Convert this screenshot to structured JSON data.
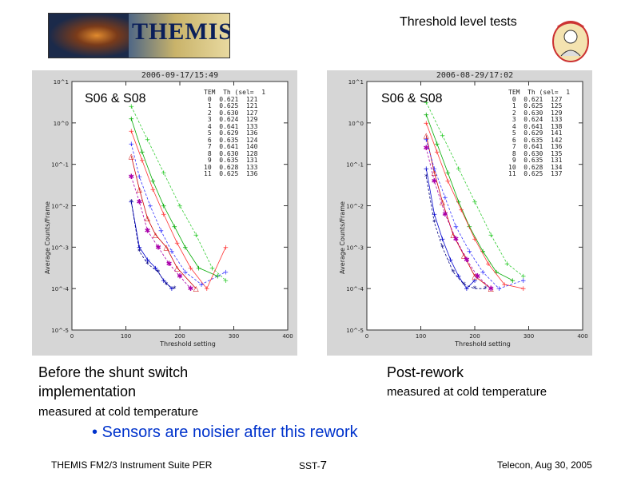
{
  "slide": {
    "title": "Threshold level tests",
    "logo_text": "THEMIS",
    "bullet": "• Sensors are noisier after this rework",
    "footer_left": "THEMIS FM2/3 Instrument Suite PER",
    "footer_mid_prefix": "SST-",
    "footer_page": "7",
    "footer_right": "Telecon, Aug 30, 2005"
  },
  "captions": {
    "left_line1": "Before the shunt switch",
    "left_line2": "implementation",
    "left_sub": "measured at cold temperature",
    "right_line1": "Post-rework",
    "right_sub": "measured at cold temperature"
  },
  "colors": {
    "bullet": "#0033cc",
    "series": [
      "#0000cc",
      "#000080",
      "#cc0000",
      "#aa00aa",
      "#00aa00",
      "#33cc33",
      "#ff3333",
      "#3333ff"
    ]
  },
  "chart_data": [
    {
      "type": "scatter",
      "timestamp": "2006-09-17/15:49",
      "label": "S06 & S08",
      "xlabel": "Threshold setting",
      "ylabel": "Average Counts/Frame",
      "xlim": [
        0,
        400
      ],
      "ylim_log10": [
        -5,
        1
      ],
      "xticks": [
        "0",
        "100",
        "200",
        "300",
        "400"
      ],
      "yticks": [
        "10^1",
        "10^0",
        "10^-1",
        "10^-2",
        "10^-3",
        "10^-4",
        "10^-5"
      ],
      "legend_header": [
        "TEM",
        "Th (sel=",
        "1"
      ],
      "legend_rows": [
        [
          "0",
          "0.621",
          "121"
        ],
        [
          "1",
          "0.625",
          "121"
        ],
        [
          "2",
          "0.630",
          "127"
        ],
        [
          "3",
          "0.624",
          "129"
        ],
        [
          "4",
          "0.641",
          "133"
        ],
        [
          "5",
          "0.629",
          "136"
        ],
        [
          "6",
          "0.635",
          "124"
        ],
        [
          "7",
          "0.641",
          "140"
        ],
        [
          "8",
          "0.630",
          "128"
        ],
        [
          "9",
          "0.635",
          "131"
        ],
        [
          "10",
          "0.628",
          "133"
        ],
        [
          "11",
          "0.625",
          "136"
        ]
      ],
      "series": [
        {
          "x": [
            110,
            125,
            140,
            155,
            170,
            185
          ],
          "y": [
            -1.9,
            -3.0,
            -3.3,
            -3.5,
            -3.8,
            -4.0
          ]
        },
        {
          "x": [
            110,
            125,
            140,
            160,
            175,
            190
          ],
          "y": [
            -1.9,
            -3.1,
            -3.4,
            -3.6,
            -3.9,
            -4.0
          ]
        },
        {
          "x": [
            110,
            125,
            140,
            155,
            175,
            195,
            230
          ],
          "y": [
            -0.8,
            -1.6,
            -2.3,
            -2.7,
            -3.0,
            -3.5,
            -4.0
          ]
        },
        {
          "x": [
            110,
            125,
            140,
            160,
            180,
            200,
            220
          ],
          "y": [
            -1.3,
            -1.9,
            -2.6,
            -3.0,
            -3.4,
            -3.7,
            -4.0
          ]
        },
        {
          "x": [
            110,
            130,
            150,
            170,
            190,
            210,
            235,
            270
          ],
          "y": [
            0.1,
            -0.7,
            -1.4,
            -2.0,
            -2.5,
            -3.0,
            -3.5,
            -3.7
          ]
        },
        {
          "x": [
            110,
            140,
            170,
            200,
            230,
            260,
            285
          ],
          "y": [
            0.4,
            -0.4,
            -1.2,
            -2.0,
            -2.7,
            -3.5,
            -3.8
          ]
        },
        {
          "x": [
            110,
            130,
            150,
            170,
            195,
            220,
            250,
            285
          ],
          "y": [
            -0.2,
            -0.9,
            -1.6,
            -2.2,
            -2.9,
            -3.5,
            -4.0,
            -3.0
          ]
        },
        {
          "x": [
            110,
            125,
            145,
            165,
            185,
            210,
            240,
            285
          ],
          "y": [
            -0.5,
            -1.3,
            -2.0,
            -2.6,
            -3.1,
            -3.6,
            -3.9,
            -3.6
          ]
        }
      ]
    },
    {
      "type": "scatter",
      "timestamp": "2006-08-29/17:02",
      "label": "S06 & S08",
      "xlabel": "Threshold setting",
      "ylabel": "Average Counts/Frame",
      "xlim": [
        0,
        400
      ],
      "ylim_log10": [
        -5,
        1
      ],
      "xticks": [
        "0",
        "100",
        "200",
        "300",
        "400"
      ],
      "yticks": [
        "10^1",
        "10^0",
        "10^-1",
        "10^-2",
        "10^-3",
        "10^-4",
        "10^-5"
      ],
      "legend_header": [
        "TEM",
        "Th (sel=",
        "1"
      ],
      "legend_rows": [
        [
          "0",
          "0.621",
          "127"
        ],
        [
          "1",
          "0.625",
          "125"
        ],
        [
          "2",
          "0.630",
          "129"
        ],
        [
          "3",
          "0.624",
          "133"
        ],
        [
          "4",
          "0.641",
          "138"
        ],
        [
          "5",
          "0.629",
          "141"
        ],
        [
          "6",
          "0.635",
          "142"
        ],
        [
          "7",
          "0.641",
          "136"
        ],
        [
          "8",
          "0.630",
          "135"
        ],
        [
          "9",
          "0.635",
          "131"
        ],
        [
          "10",
          "0.628",
          "134"
        ],
        [
          "11",
          "0.625",
          "137"
        ]
      ],
      "series": [
        {
          "x": [
            110,
            125,
            140,
            155,
            170,
            185,
            200
          ],
          "y": [
            -1.1,
            -2.2,
            -2.8,
            -3.3,
            -3.7,
            -4.0,
            -3.8
          ]
        },
        {
          "x": [
            110,
            125,
            140,
            160,
            180,
            200,
            220
          ],
          "y": [
            -1.3,
            -2.4,
            -3.0,
            -3.6,
            -3.9,
            -4.0,
            -4.0
          ]
        },
        {
          "x": [
            110,
            125,
            140,
            160,
            180,
            200,
            230
          ],
          "y": [
            -0.3,
            -1.2,
            -1.9,
            -2.7,
            -3.2,
            -3.7,
            -4.0
          ]
        },
        {
          "x": [
            110,
            125,
            145,
            165,
            185,
            205,
            230
          ],
          "y": [
            -0.6,
            -1.4,
            -2.2,
            -2.8,
            -3.3,
            -3.7,
            -4.0
          ]
        },
        {
          "x": [
            110,
            130,
            150,
            170,
            190,
            215,
            240,
            270
          ],
          "y": [
            0.2,
            -0.5,
            -1.2,
            -1.9,
            -2.5,
            -3.1,
            -3.6,
            -3.8
          ]
        },
        {
          "x": [
            110,
            140,
            170,
            200,
            230,
            260,
            290
          ],
          "y": [
            0.5,
            -0.3,
            -1.1,
            -1.9,
            -2.7,
            -3.4,
            -3.7
          ]
        },
        {
          "x": [
            110,
            130,
            150,
            175,
            200,
            225,
            255,
            290
          ],
          "y": [
            0.0,
            -0.7,
            -1.4,
            -2.1,
            -2.8,
            -3.4,
            -3.9,
            -4.0
          ]
        },
        {
          "x": [
            110,
            125,
            145,
            165,
            190,
            215,
            245,
            290
          ],
          "y": [
            -0.4,
            -1.1,
            -1.8,
            -2.5,
            -3.1,
            -3.6,
            -4.0,
            -3.8
          ]
        }
      ]
    }
  ]
}
